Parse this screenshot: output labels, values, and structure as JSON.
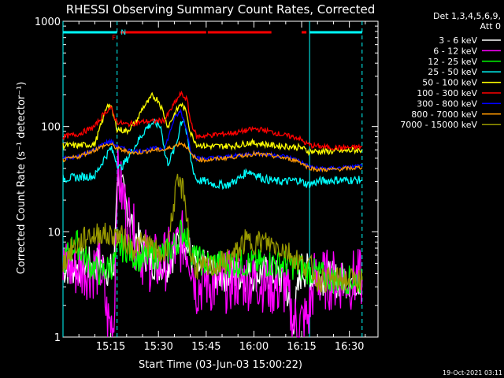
{
  "chart_data": {
    "type": "line",
    "title": "RHESSI Observing Summary Count Rates, Corrected",
    "xlabel": "Start Time (03-Jun-03 15:00:22)",
    "ylabel": "Corrected Count Rate (s⁻¹ detector⁻¹)",
    "footer": "19-Oct-2021 03:11",
    "legend_header": [
      "Det 1,3,4,5,6,9,",
      "Att 0"
    ],
    "legend_position": "right",
    "x_unit": "minutes since 15:00:22",
    "xlim": [
      0,
      99
    ],
    "x_ticks": [
      {
        "x": 15,
        "label": "15:15"
      },
      {
        "x": 30,
        "label": "15:30"
      },
      {
        "x": 45,
        "label": "15:45"
      },
      {
        "x": 60,
        "label": "16:00"
      },
      {
        "x": 75,
        "label": "16:15"
      },
      {
        "x": 90,
        "label": "16:30"
      }
    ],
    "y_scale": "log",
    "ylim": [
      1,
      1000
    ],
    "y_ticks": [
      {
        "y": 1,
        "label": "1"
      },
      {
        "y": 10,
        "label": "10"
      },
      {
        "y": 100,
        "label": "100"
      },
      {
        "y": 1000,
        "label": "1000"
      }
    ],
    "series": [
      {
        "name": "3 - 6 keV",
        "color": "#ffffff",
        "points": [
          [
            0,
            4.5
          ],
          [
            12,
            5
          ],
          [
            16,
            4
          ],
          [
            17,
            36
          ],
          [
            19,
            22
          ],
          [
            21,
            14
          ],
          [
            23,
            9
          ],
          [
            25,
            7
          ],
          [
            27,
            5.5
          ],
          [
            30,
            5
          ],
          [
            33,
            5
          ],
          [
            35,
            6.5
          ],
          [
            37,
            9.5
          ],
          [
            38.5,
            8
          ],
          [
            40,
            6
          ],
          [
            42,
            4.5
          ],
          [
            45,
            4.5
          ],
          [
            50,
            4
          ],
          [
            55,
            4
          ],
          [
            60,
            4
          ],
          [
            65,
            4
          ],
          [
            70,
            3.5
          ],
          [
            72,
            1.2
          ],
          [
            75,
            4.5
          ],
          [
            78,
            4
          ],
          [
            85,
            3.5
          ],
          [
            90,
            3.5
          ],
          [
            94,
            3.5
          ]
        ]
      },
      {
        "name": "6 - 12 keV",
        "color": "#ff00ff",
        "points": [
          [
            0,
            4.5
          ],
          [
            12,
            4.5
          ],
          [
            14,
            1.4
          ],
          [
            16,
            1.3
          ],
          [
            17,
            37
          ],
          [
            19,
            20
          ],
          [
            21,
            12
          ],
          [
            23,
            8
          ],
          [
            25,
            6
          ],
          [
            28,
            5
          ],
          [
            31,
            5
          ],
          [
            34,
            6
          ],
          [
            36,
            7
          ],
          [
            38,
            8.5
          ],
          [
            40,
            6
          ],
          [
            42,
            3
          ],
          [
            45,
            3.5
          ],
          [
            48,
            3
          ],
          [
            50,
            3.2
          ],
          [
            54,
            3.5
          ],
          [
            58,
            3.5
          ],
          [
            62,
            3.5
          ],
          [
            66,
            3
          ],
          [
            70,
            3
          ],
          [
            72,
            1.5
          ],
          [
            74,
            1.3
          ],
          [
            77,
            1.5
          ],
          [
            79,
            3.5
          ],
          [
            85,
            3.5
          ],
          [
            90,
            3.5
          ],
          [
            94,
            3.5
          ]
        ]
      },
      {
        "name": "12 - 25 keV",
        "color": "#00ff00",
        "points": [
          [
            0,
            5
          ],
          [
            2,
            6.5
          ],
          [
            4,
            8
          ],
          [
            6,
            6.5
          ],
          [
            8,
            5
          ],
          [
            10,
            4.5
          ],
          [
            12,
            4
          ],
          [
            14,
            4.5
          ],
          [
            16,
            5
          ],
          [
            18,
            7
          ],
          [
            20,
            7
          ],
          [
            22,
            6
          ],
          [
            25,
            5.5
          ],
          [
            28,
            6
          ],
          [
            31,
            6
          ],
          [
            33,
            6.5
          ],
          [
            36,
            8
          ],
          [
            37,
            10
          ],
          [
            38.5,
            10
          ],
          [
            40,
            7
          ],
          [
            42,
            5.5
          ],
          [
            45,
            5
          ],
          [
            50,
            5
          ],
          [
            55,
            5
          ],
          [
            60,
            5
          ],
          [
            65,
            5
          ],
          [
            70,
            5
          ],
          [
            75,
            4.5
          ],
          [
            80,
            4
          ],
          [
            85,
            3.5
          ],
          [
            90,
            3.5
          ],
          [
            94,
            3.5
          ]
        ]
      },
      {
        "name": "25 - 50 keV",
        "color": "#00ffff",
        "points": [
          [
            0,
            32
          ],
          [
            5,
            33
          ],
          [
            10,
            34
          ],
          [
            13,
            50
          ],
          [
            15,
            62
          ],
          [
            16,
            55
          ],
          [
            17,
            45
          ],
          [
            18,
            40
          ],
          [
            20,
            48
          ],
          [
            23,
            68
          ],
          [
            26,
            95
          ],
          [
            28,
            108
          ],
          [
            30,
            105
          ],
          [
            31,
            95
          ],
          [
            32,
            55
          ],
          [
            33,
            45
          ],
          [
            35,
            60
          ],
          [
            36,
            75
          ],
          [
            37,
            110
          ],
          [
            38,
            118
          ],
          [
            39,
            80
          ],
          [
            40,
            52
          ],
          [
            41,
            38
          ],
          [
            42,
            31
          ],
          [
            45,
            30
          ],
          [
            48,
            28
          ],
          [
            52,
            28
          ],
          [
            56,
            33
          ],
          [
            58,
            38
          ],
          [
            60,
            36
          ],
          [
            63,
            32
          ],
          [
            67,
            30
          ],
          [
            70,
            30
          ],
          [
            74,
            31
          ],
          [
            77,
            28
          ],
          [
            80,
            30
          ],
          [
            85,
            31
          ],
          [
            90,
            31
          ],
          [
            94,
            31
          ]
        ]
      },
      {
        "name": "50 - 100 keV",
        "color": "#ffff00",
        "points": [
          [
            0,
            66
          ],
          [
            5,
            66
          ],
          [
            10,
            68
          ],
          [
            13,
            130
          ],
          [
            14,
            165
          ],
          [
            15,
            155
          ],
          [
            17,
            95
          ],
          [
            20,
            90
          ],
          [
            23,
            110
          ],
          [
            25,
            150
          ],
          [
            27,
            175
          ],
          [
            28,
            195
          ],
          [
            30,
            178
          ],
          [
            31,
            150
          ],
          [
            33,
            100
          ],
          [
            35,
            130
          ],
          [
            37,
            165
          ],
          [
            38,
            150
          ],
          [
            39,
            130
          ],
          [
            40,
            88
          ],
          [
            42,
            68
          ],
          [
            45,
            65
          ],
          [
            50,
            65
          ],
          [
            55,
            66
          ],
          [
            58,
            70
          ],
          [
            62,
            69
          ],
          [
            66,
            66
          ],
          [
            70,
            65
          ],
          [
            75,
            63
          ],
          [
            77,
            58
          ],
          [
            80,
            58
          ],
          [
            85,
            58
          ],
          [
            90,
            59
          ],
          [
            94,
            60
          ]
        ]
      },
      {
        "name": "100 - 300 keV",
        "color": "#ff0000",
        "points": [
          [
            0,
            80
          ],
          [
            5,
            85
          ],
          [
            10,
            100
          ],
          [
            13,
            135
          ],
          [
            15,
            150
          ],
          [
            17,
            110
          ],
          [
            20,
            105
          ],
          [
            23,
            108
          ],
          [
            26,
            112
          ],
          [
            29,
            112
          ],
          [
            32,
            115
          ],
          [
            35,
            165
          ],
          [
            37,
            205
          ],
          [
            39,
            180
          ],
          [
            40,
            115
          ],
          [
            42,
            80
          ],
          [
            45,
            82
          ],
          [
            50,
            85
          ],
          [
            55,
            88
          ],
          [
            60,
            95
          ],
          [
            63,
            93
          ],
          [
            66,
            88
          ],
          [
            70,
            82
          ],
          [
            74,
            78
          ],
          [
            76,
            70
          ],
          [
            78,
            66
          ],
          [
            80,
            65
          ],
          [
            85,
            63
          ],
          [
            90,
            63
          ],
          [
            94,
            64
          ]
        ]
      },
      {
        "name": "300 - 800 keV",
        "color": "#0000ff",
        "points": [
          [
            0,
            50
          ],
          [
            5,
            52
          ],
          [
            10,
            60
          ],
          [
            13,
            70
          ],
          [
            15,
            72
          ],
          [
            17,
            65
          ],
          [
            20,
            60
          ],
          [
            23,
            58
          ],
          [
            26,
            60
          ],
          [
            29,
            62
          ],
          [
            32,
            62
          ],
          [
            35,
            120
          ],
          [
            37,
            140
          ],
          [
            39,
            90
          ],
          [
            40,
            60
          ],
          [
            42,
            50
          ],
          [
            45,
            50
          ],
          [
            50,
            51
          ],
          [
            55,
            53
          ],
          [
            60,
            56
          ],
          [
            65,
            54
          ],
          [
            70,
            52
          ],
          [
            74,
            48
          ],
          [
            77,
            42
          ],
          [
            80,
            40
          ],
          [
            85,
            40
          ],
          [
            90,
            41
          ],
          [
            94,
            42
          ]
        ]
      },
      {
        "name": "800 - 7000 keV",
        "color": "#ff9900",
        "points": [
          [
            0,
            48
          ],
          [
            5,
            52
          ],
          [
            10,
            60
          ],
          [
            13,
            66
          ],
          [
            15,
            68
          ],
          [
            17,
            62
          ],
          [
            20,
            58
          ],
          [
            23,
            56
          ],
          [
            26,
            58
          ],
          [
            29,
            60
          ],
          [
            32,
            60
          ],
          [
            35,
            65
          ],
          [
            37,
            70
          ],
          [
            39,
            64
          ],
          [
            40,
            55
          ],
          [
            42,
            49
          ],
          [
            45,
            48
          ],
          [
            50,
            50
          ],
          [
            55,
            52
          ],
          [
            60,
            55
          ],
          [
            65,
            53
          ],
          [
            70,
            50
          ],
          [
            74,
            47
          ],
          [
            77,
            41
          ],
          [
            80,
            39
          ],
          [
            85,
            39
          ],
          [
            90,
            40
          ],
          [
            94,
            41
          ]
        ]
      },
      {
        "name": "7000 - 15000 keV",
        "color": "#999900",
        "points": [
          [
            0,
            5
          ],
          [
            3,
            7
          ],
          [
            6,
            8
          ],
          [
            8,
            9.5
          ],
          [
            10,
            9
          ],
          [
            12,
            10
          ],
          [
            14,
            9
          ],
          [
            16,
            9.5
          ],
          [
            18,
            9
          ],
          [
            20,
            8
          ],
          [
            22,
            7
          ],
          [
            24,
            7.5
          ],
          [
            26,
            8
          ],
          [
            28,
            7
          ],
          [
            30,
            6
          ],
          [
            32,
            6
          ],
          [
            34,
            12
          ],
          [
            35,
            20
          ],
          [
            36,
            27
          ],
          [
            37,
            27
          ],
          [
            38,
            24
          ],
          [
            39,
            14
          ],
          [
            40,
            6
          ],
          [
            42,
            4.5
          ],
          [
            45,
            4.5
          ],
          [
            50,
            5
          ],
          [
            54,
            6
          ],
          [
            57,
            8
          ],
          [
            60,
            8
          ],
          [
            63,
            8
          ],
          [
            66,
            7.5
          ],
          [
            69,
            7
          ],
          [
            72,
            6
          ],
          [
            75,
            5
          ],
          [
            78,
            4.5
          ],
          [
            80,
            3.5
          ],
          [
            85,
            3.5
          ],
          [
            90,
            3.5
          ],
          [
            94,
            3.5
          ]
        ]
      }
    ],
    "flag_bars": [
      {
        "color": "#00ffff",
        "from": 0,
        "to": 17
      },
      {
        "color": "#ff0000",
        "from": 18,
        "to": 45
      },
      {
        "color": "#ff0000",
        "from": 45.5,
        "to": 65.5
      },
      {
        "color": "#ff0000",
        "from": 75,
        "to": 76.5
      },
      {
        "color": "#00ffff",
        "from": 77.5,
        "to": 94
      }
    ],
    "flag_labels": [
      {
        "text": "F",
        "x": 16,
        "color": "#ff0000"
      },
      {
        "text": "N",
        "x": 19,
        "color": "#00ffff"
      }
    ],
    "vertical_lines": [
      {
        "x": 0,
        "color": "#00ffff",
        "style": "solid"
      },
      {
        "x": 17,
        "color": "#00ffff",
        "style": "dashed"
      },
      {
        "x": 77.5,
        "color": "#00ffff",
        "style": "solid"
      },
      {
        "x": 94,
        "color": "#00ffff",
        "style": "dashed"
      }
    ]
  }
}
